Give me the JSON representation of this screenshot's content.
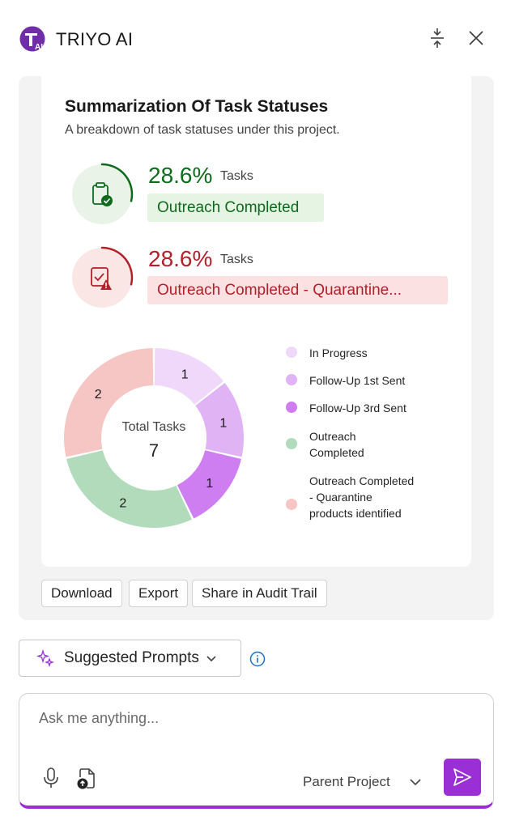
{
  "app": {
    "title": "TRIYO AI",
    "logo_icon": "triyo-logo-icon"
  },
  "header": {
    "collapse_icon": "collapse-vertical-icon",
    "close_icon": "close-icon"
  },
  "summary": {
    "title": "Summarization Of Task Statuses",
    "subtitle": "A breakdown of task statuses under this project.",
    "stats": [
      {
        "percent": "28.6%",
        "unit": "Tasks",
        "label": "Outreach Completed",
        "icon": "clipboard-check-icon",
        "color": "#0e6b1d",
        "fraction": 0.286
      },
      {
        "percent": "28.6%",
        "unit": "Tasks",
        "label": "Outreach Completed - Quarantine...",
        "icon": "clipboard-warning-icon",
        "color": "#b3202a",
        "fraction": 0.286
      }
    ]
  },
  "chart_data": {
    "type": "pie",
    "center_label": "Total Tasks",
    "total": 7,
    "categories": [
      "In Progress",
      "Follow-Up 1st Sent",
      "Follow-Up 3rd Sent",
      "Outreach Completed",
      "Outreach Completed - Quarantine products identified"
    ],
    "values": [
      1,
      1,
      1,
      2,
      2
    ],
    "colors": [
      "#f0d8fb",
      "#e0b3f5",
      "#cf7ef2",
      "#b2dbbc",
      "#f6c6c4"
    ],
    "legend_position": "right"
  },
  "actions": [
    "Download",
    "Export",
    "Share in Audit Trail"
  ],
  "prompts": {
    "label": "Suggested Prompts",
    "icon": "sparkle-icon",
    "chevron": "chevron-down-icon",
    "info_icon": "info-icon"
  },
  "chat": {
    "placeholder": "Ask me anything...",
    "scope_value": "Parent Project",
    "mic_icon": "microphone-icon",
    "attach_icon": "attach-file-icon",
    "send_icon": "send-icon",
    "accent": "#9b2fd6"
  }
}
